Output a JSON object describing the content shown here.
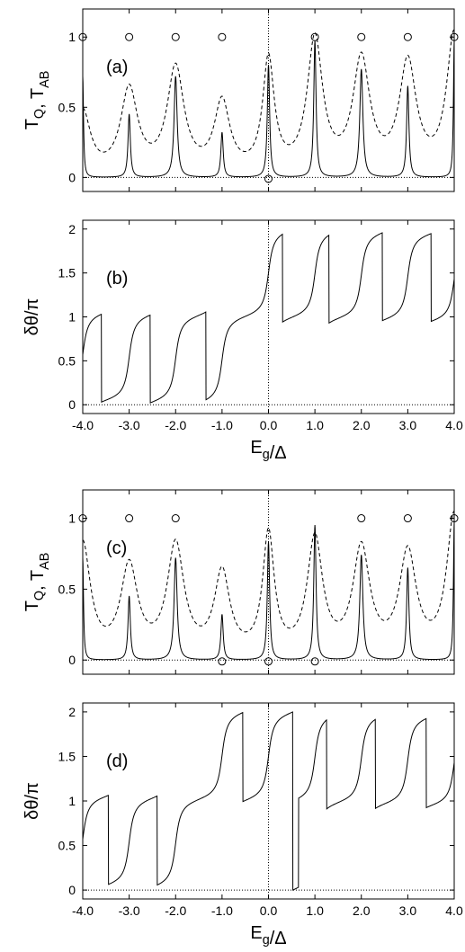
{
  "chart_data": [
    {
      "panel": "(a)",
      "type": "line",
      "ylabel": "T_Q, T_AB",
      "xlabel": "",
      "xlim": [
        -4.0,
        4.0
      ],
      "ylim": [
        -0.1,
        1.2
      ],
      "yticks": [
        "0",
        "0.5",
        "1"
      ],
      "xticks": [
        "",
        "",
        "",
        "",
        "",
        "",
        "",
        "",
        ""
      ],
      "series": [
        {
          "style": "solid",
          "resonances": [
            [
              -4.0,
              0.72,
              0.02
            ],
            [
              -3.0,
              0.45,
              0.03
            ],
            [
              -2.0,
              0.72,
              0.04
            ],
            [
              -1.0,
              0.32,
              0.03
            ],
            [
              0.0,
              0.8,
              0.03
            ],
            [
              1.0,
              0.97,
              0.03
            ],
            [
              2.0,
              0.77,
              0.04
            ],
            [
              3.0,
              0.65,
              0.03
            ],
            [
              4.0,
              0.97,
              0.02
            ]
          ]
        },
        {
          "style": "dashed",
          "resonances": [
            [
              -4.0,
              0.45,
              0.2
            ],
            [
              -3.0,
              0.6,
              0.22
            ],
            [
              -2.0,
              0.75,
              0.22
            ],
            [
              -1.0,
              0.5,
              0.2
            ],
            [
              0.0,
              0.8,
              0.15
            ],
            [
              1.0,
              0.95,
              0.2
            ],
            [
              2.0,
              0.8,
              0.22
            ],
            [
              3.0,
              0.78,
              0.22
            ],
            [
              4.0,
              1.0,
              0.2
            ]
          ]
        }
      ],
      "markers": [
        [
          -4.0,
          1.0
        ],
        [
          -3.0,
          1.0
        ],
        [
          -2.0,
          1.0
        ],
        [
          -1.0,
          1.0
        ],
        [
          0.0,
          -0.01
        ],
        [
          1.0,
          1.0
        ],
        [
          2.0,
          1.0
        ],
        [
          3.0,
          1.0
        ],
        [
          4.0,
          1.0
        ]
      ],
      "vline": 0.0,
      "hline": 0.0
    },
    {
      "panel": "(b)",
      "type": "line",
      "ylabel": "δθ/π",
      "xlabel": "E_g/Δ",
      "xlim": [
        -4.0,
        4.0
      ],
      "ylim": [
        -0.1,
        2.1
      ],
      "yticks": [
        "0",
        "0.5",
        "1",
        "1.5",
        "2"
      ],
      "xticks": [
        "-4.0",
        "-3.0",
        "-2.0",
        "-1.0",
        "0.0",
        "1.0",
        "2.0",
        "3.0",
        "4.0"
      ],
      "series": [
        {
          "style": "solid",
          "centers": [
            -4.0,
            -3.0,
            -2.0,
            -1.0,
            0.0,
            1.0,
            2.0,
            3.0,
            4.0
          ],
          "jumps": [
            -3.6,
            -2.55,
            -1.35,
            0.3,
            1.3,
            2.45,
            3.5
          ]
        }
      ],
      "vline": 0.0,
      "hline": 0.0
    },
    {
      "panel": "(c)",
      "type": "line",
      "ylabel": "T_Q, T_AB",
      "xlabel": "",
      "xlim": [
        -4.0,
        4.0
      ],
      "ylim": [
        -0.1,
        1.2
      ],
      "yticks": [
        "0",
        "0.5",
        "1"
      ],
      "xticks": [
        "",
        "",
        "",
        "",
        "",
        "",
        "",
        "",
        ""
      ],
      "series": [
        {
          "style": "solid",
          "resonances": [
            [
              -4.0,
              0.72,
              0.02
            ],
            [
              -3.0,
              0.45,
              0.03
            ],
            [
              -2.0,
              0.72,
              0.04
            ],
            [
              -1.0,
              0.32,
              0.03
            ],
            [
              0.0,
              0.83,
              0.03
            ],
            [
              1.0,
              0.95,
              0.03
            ],
            [
              2.0,
              0.74,
              0.04
            ],
            [
              3.0,
              0.65,
              0.03
            ],
            [
              4.0,
              0.97,
              0.02
            ]
          ]
        },
        {
          "style": "dashed",
          "resonances": [
            [
              -4.0,
              0.8,
              0.2
            ],
            [
              -3.0,
              0.63,
              0.22
            ],
            [
              -2.0,
              0.78,
              0.22
            ],
            [
              -1.0,
              0.58,
              0.2
            ],
            [
              0.0,
              0.85,
              0.15
            ],
            [
              1.0,
              0.82,
              0.2
            ],
            [
              2.0,
              0.75,
              0.22
            ],
            [
              3.0,
              0.72,
              0.22
            ],
            [
              4.0,
              1.0,
              0.2
            ]
          ]
        }
      ],
      "markers": [
        [
          -4.0,
          1.0
        ],
        [
          -3.0,
          1.0
        ],
        [
          -2.0,
          1.0
        ],
        [
          -1.0,
          -0.01
        ],
        [
          0.0,
          -0.01
        ],
        [
          1.0,
          -0.01
        ],
        [
          2.0,
          1.0
        ],
        [
          3.0,
          1.0
        ],
        [
          4.0,
          1.0
        ]
      ],
      "vline": 0.0,
      "hline": 0.0
    },
    {
      "panel": "(d)",
      "type": "line",
      "ylabel": "δθ/π",
      "xlabel": "E_g/Δ",
      "xlim": [
        -4.0,
        4.0
      ],
      "ylim": [
        -0.1,
        2.1
      ],
      "yticks": [
        "0",
        "0.5",
        "1",
        "1.5",
        "2"
      ],
      "xticks": [
        "-4.0",
        "-3.0",
        "-2.0",
        "-1.0",
        "0.0",
        "1.0",
        "2.0",
        "3.0",
        "4.0"
      ],
      "series": [
        {
          "style": "solid",
          "centers": [
            -4.0,
            -3.0,
            -2.0,
            -1.0,
            0.0,
            1.0,
            2.0,
            3.0,
            4.0
          ],
          "jumps": [
            -3.45,
            -2.4,
            -0.55,
            0.65,
            1.25,
            2.3,
            3.4
          ]
        }
      ],
      "vline": 0.0,
      "hline": 0.0
    }
  ]
}
